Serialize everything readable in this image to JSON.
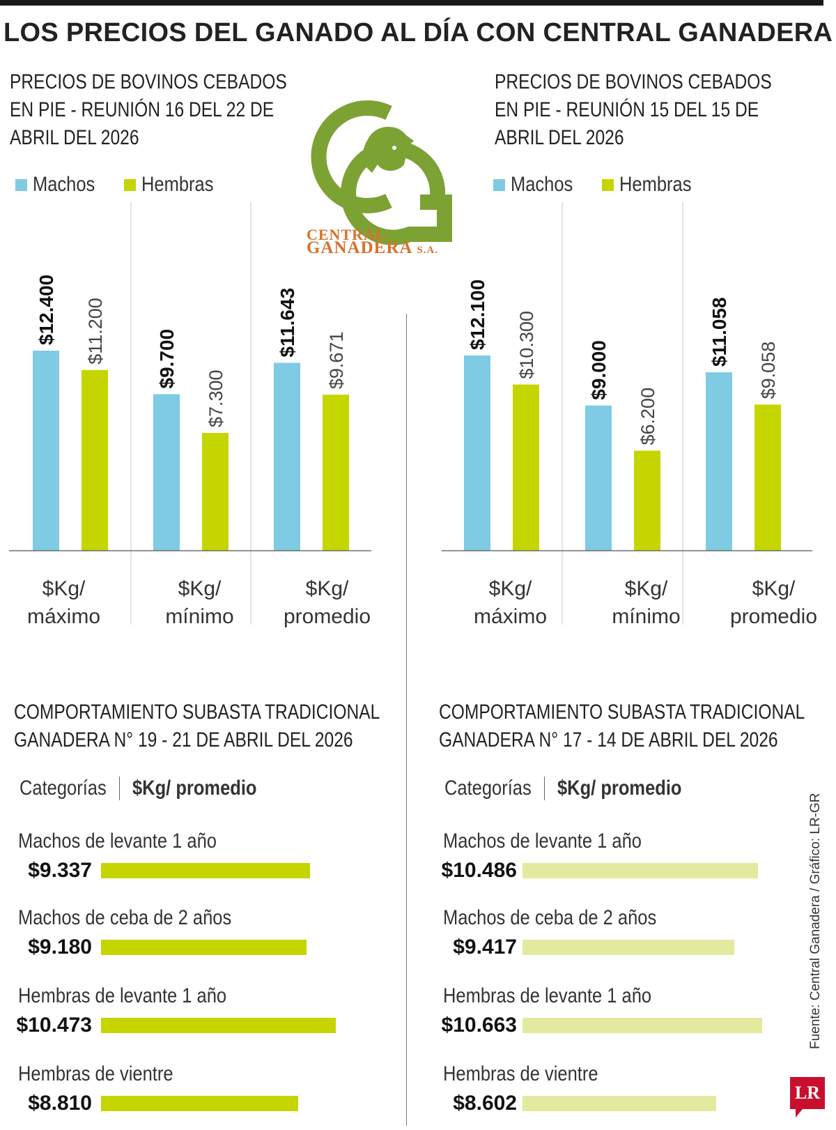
{
  "title": "LOS PRECIOS DEL GANADO AL DÍA CON CENTRAL GANADERA",
  "colors": {
    "machos": "#7ecbe3",
    "hembras": "#c5d500",
    "hembras_light": "#e3eaa0",
    "logo_green": "#7da234",
    "logo_orange": "#d7712a"
  },
  "logo": {
    "line1": "CENTRAL",
    "line2": "GANADERA",
    "suffix": "S.A."
  },
  "legend": {
    "machos": "Machos",
    "hembras": "Hembras"
  },
  "chart_data": [
    {
      "type": "bar",
      "title": "PRECIOS DE BOVINOS CEBADOS EN PIE - REUNIÓN 16 DEL 22 DE ABRIL DEL 2026",
      "title_lines": [
        "PRECIOS DE BOVINOS CEBADOS",
        "EN PIE - REUNIÓN 16 DEL 22 DE",
        "ABRIL DEL 2026"
      ],
      "categories": [
        [
          "$Kg/",
          "máximo"
        ],
        [
          "$Kg/",
          "mínimo"
        ],
        [
          "$Kg/",
          "promedio"
        ]
      ],
      "series": [
        {
          "name": "Machos",
          "values": [
            12400,
            9700,
            11643
          ],
          "labels": [
            "$12.400",
            "$9.700",
            "$11.643"
          ]
        },
        {
          "name": "Hembras",
          "values": [
            11200,
            7300,
            9671
          ],
          "labels": [
            "$11.200",
            "$7.300",
            "$9.671"
          ]
        }
      ],
      "ylim": [
        0,
        16000
      ]
    },
    {
      "type": "bar",
      "title": "PRECIOS DE BOVINOS CEBADOS EN PIE - REUNIÓN 15 DEL 15 DE ABRIL DEL 2026",
      "title_lines": [
        "PRECIOS DE BOVINOS CEBADOS",
        "EN PIE - REUNIÓN 15 DEL 15 DE",
        "ABRIL DEL 2026"
      ],
      "categories": [
        [
          "$Kg/",
          "máximo"
        ],
        [
          "$Kg/",
          "mínimo"
        ],
        [
          "$Kg/",
          "promedio"
        ]
      ],
      "series": [
        {
          "name": "Machos",
          "values": [
            12100,
            9000,
            11058
          ],
          "labels": [
            "$12.100",
            "$9.000",
            "$11.058"
          ]
        },
        {
          "name": "Hembras",
          "values": [
            10300,
            6200,
            9058
          ],
          "labels": [
            "$10.300",
            "$6.200",
            "$9.058"
          ]
        }
      ],
      "ylim": [
        0,
        16000
      ]
    },
    {
      "type": "bar",
      "orientation": "horizontal",
      "title": "COMPORTAMIENTO SUBASTA TRADICIONAL GANADERA N° 19 - 21 DE ABRIL DEL 2026",
      "title_lines": [
        "COMPORTAMIENTO SUBASTA TRADICIONAL",
        "GANADERA N° 19 - 21 DE ABRIL DEL 2026"
      ],
      "header": {
        "categories": "Categorías",
        "value": "$Kg/ promedio"
      },
      "categories": [
        "Machos de levante 1 año",
        "Machos de ceba de 2 años",
        "Hembras de levante 1 año",
        "Hembras de vientre"
      ],
      "values": [
        9337,
        9180,
        10473,
        8810
      ],
      "labels": [
        "$9.337",
        "$9.180",
        "$10.473",
        "$8.810"
      ],
      "xlim": [
        0,
        10473
      ]
    },
    {
      "type": "bar",
      "orientation": "horizontal",
      "title": "COMPORTAMIENTO SUBASTA TRADICIONAL GANADERA N° 17 - 14 DE ABRIL DEL 2026",
      "title_lines": [
        "COMPORTAMIENTO SUBASTA TRADICIONAL",
        "GANADERA N° 17 - 14 DE ABRIL DEL 2026"
      ],
      "header": {
        "categories": "Categorías",
        "value": "$Kg/ promedio"
      },
      "categories": [
        "Machos de levante 1 año",
        "Machos de ceba de 2 años",
        "Hembras de levante 1 año",
        "Hembras de vientre"
      ],
      "values": [
        10486,
        9417,
        10663,
        8602
      ],
      "labels": [
        "$10.486",
        "$9.417",
        "$10.663",
        "$8.602"
      ],
      "xlim": [
        0,
        10663
      ]
    }
  ],
  "source": "Fuente: Central Ganadera / Gráfico: LR-GR",
  "badge": "LR"
}
